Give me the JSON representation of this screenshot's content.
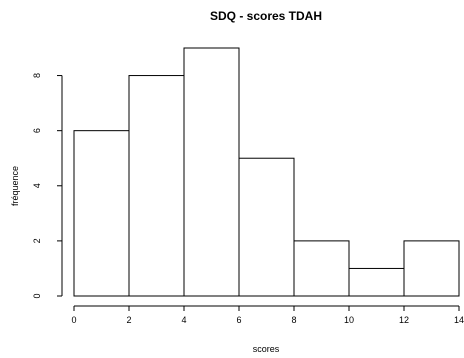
{
  "chart_data": {
    "type": "bar",
    "title": "SDQ - scores TDAH",
    "xlabel": "scores",
    "ylabel": "fréquence",
    "bins": [
      {
        "start": 0,
        "end": 2,
        "count": 6
      },
      {
        "start": 2,
        "end": 4,
        "count": 8
      },
      {
        "start": 4,
        "end": 6,
        "count": 9
      },
      {
        "start": 6,
        "end": 8,
        "count": 5
      },
      {
        "start": 8,
        "end": 10,
        "count": 2
      },
      {
        "start": 10,
        "end": 12,
        "count": 1
      },
      {
        "start": 12,
        "end": 14,
        "count": 2
      }
    ],
    "xlim": [
      0,
      14
    ],
    "ylim": [
      0,
      9
    ],
    "xticks": [
      "0",
      "2",
      "4",
      "6",
      "8",
      "10",
      "12",
      "14"
    ],
    "yticks": [
      "0",
      "2",
      "4",
      "6",
      "8"
    ],
    "grid": false,
    "colors": {
      "bar_fill": "#ffffff",
      "bar_stroke": "#000000"
    }
  }
}
